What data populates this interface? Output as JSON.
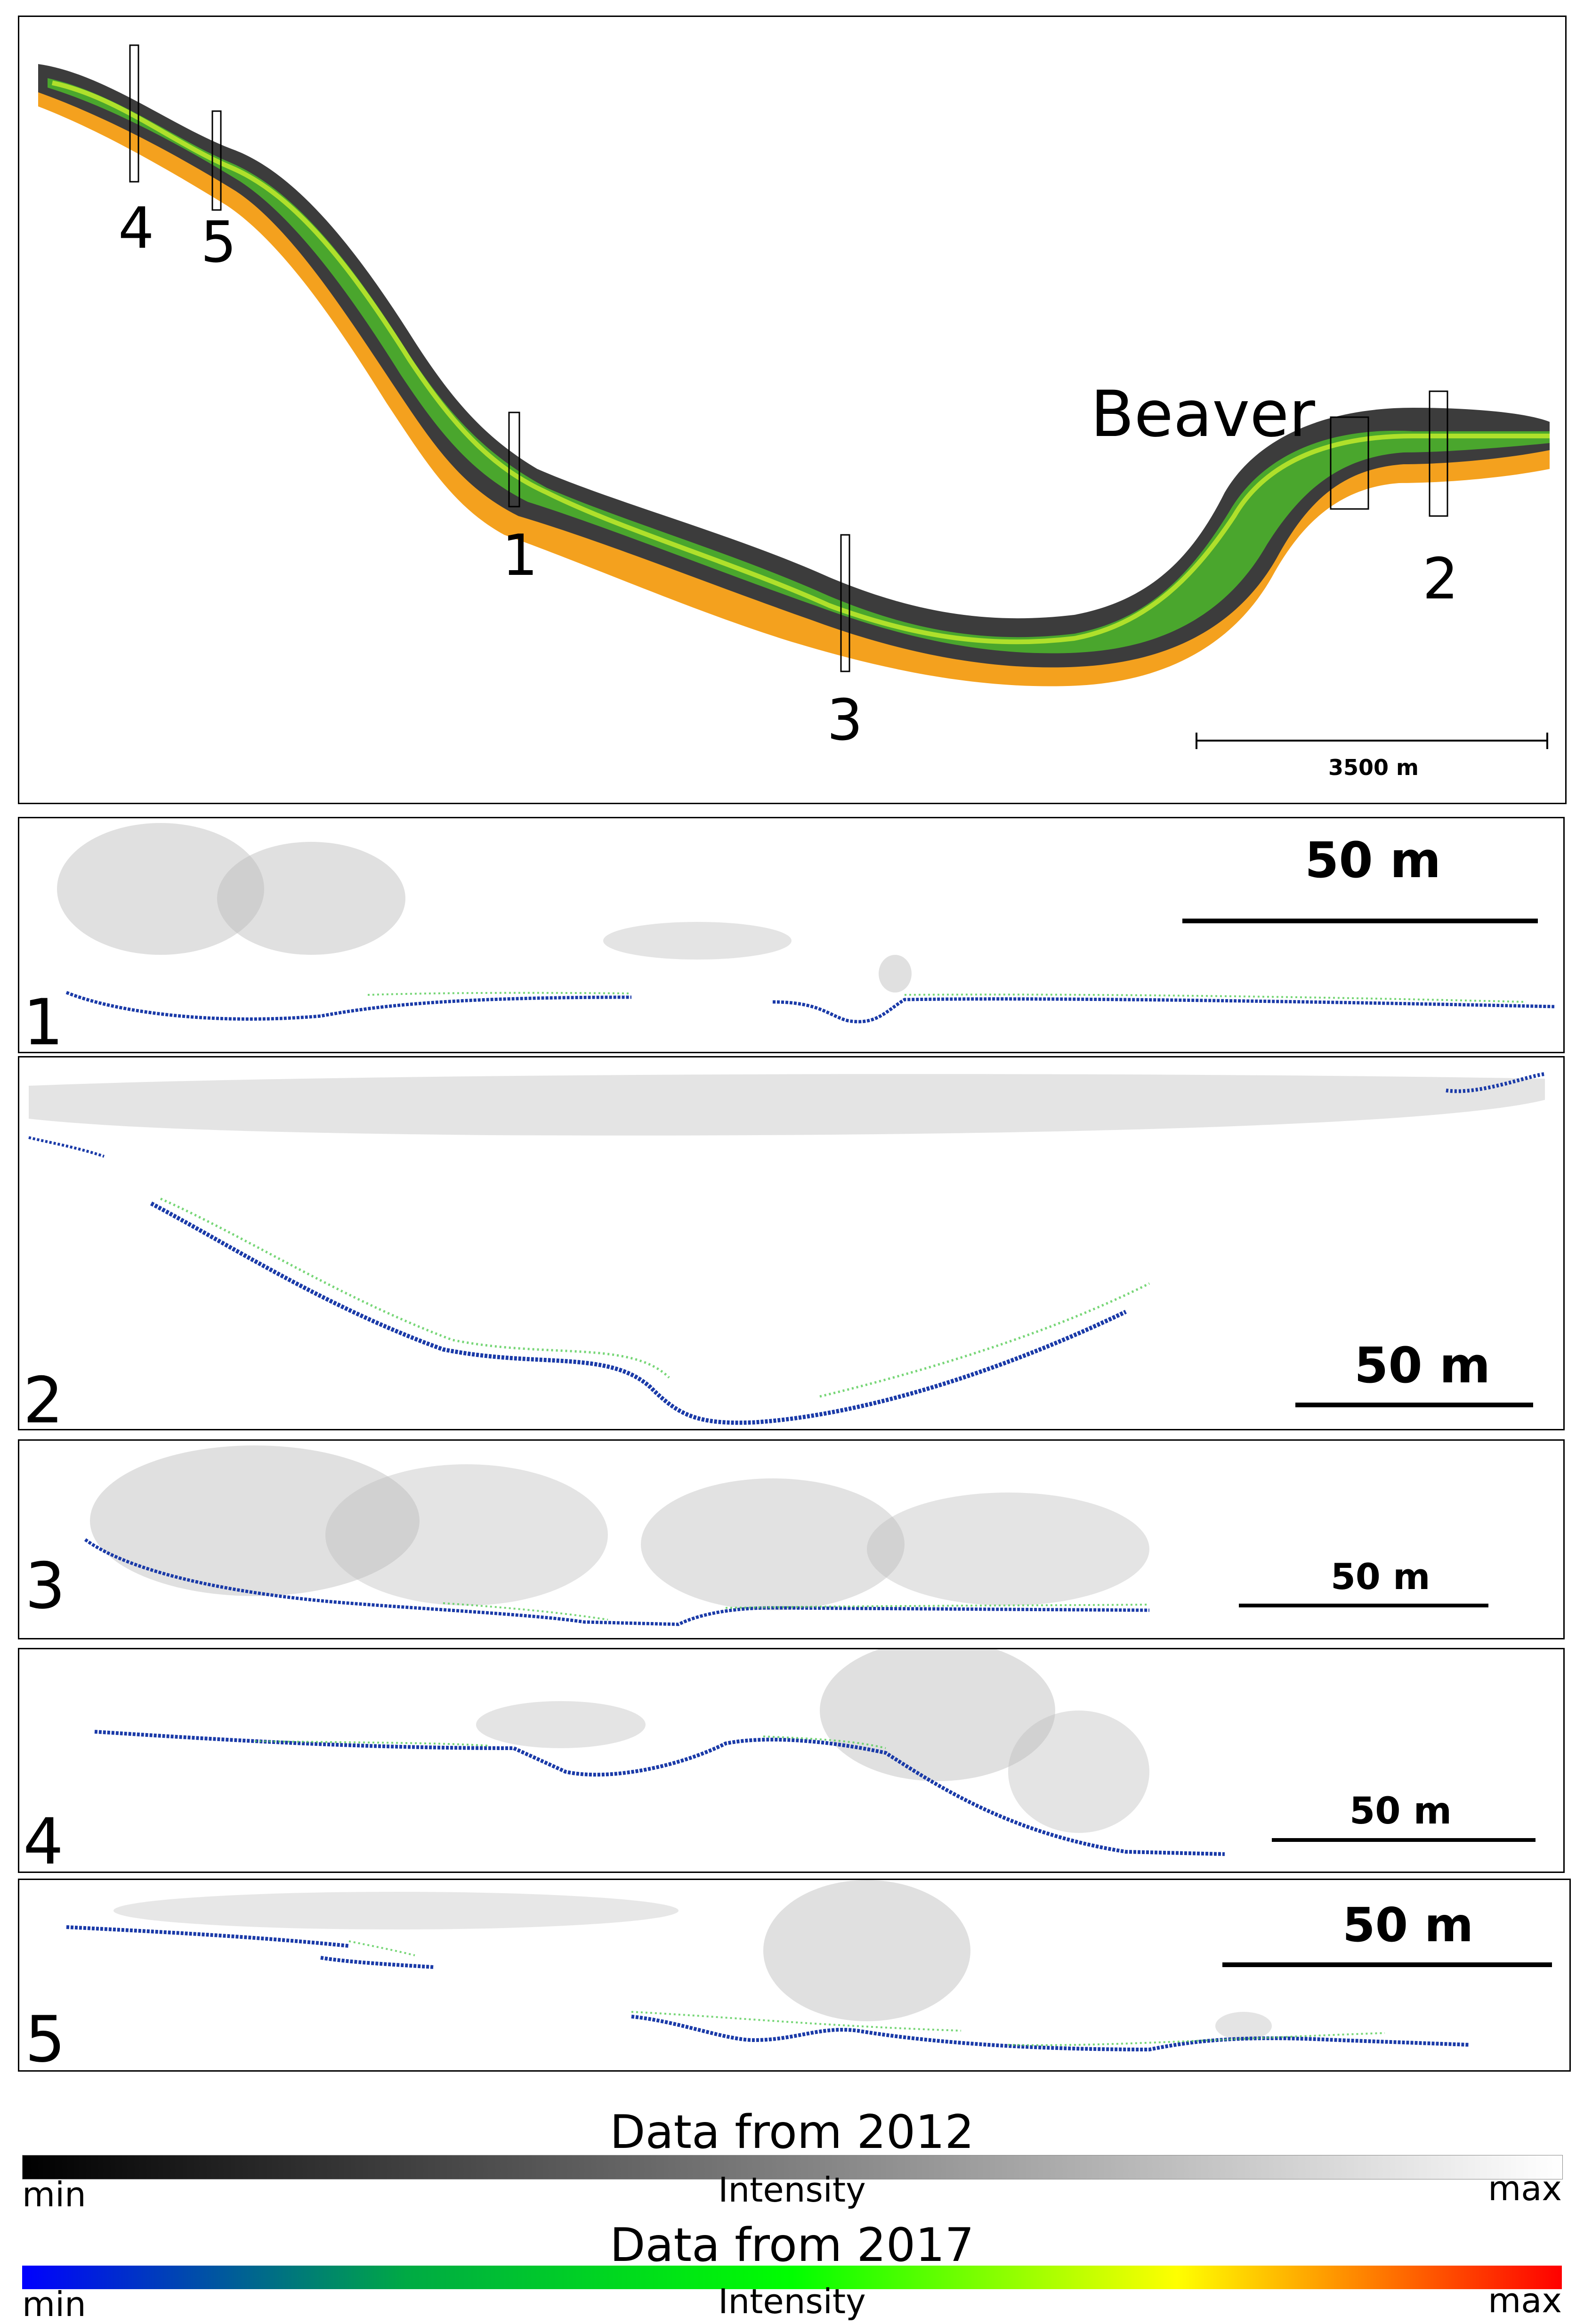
{
  "map": {
    "scale_label": "3500 m",
    "beaver_label": "Beaver",
    "transect_labels": [
      "1",
      "2",
      "3",
      "4",
      "5"
    ]
  },
  "profiles": [
    {
      "number": "1",
      "scale_label": "50 m"
    },
    {
      "number": "2",
      "scale_label": "50 m"
    },
    {
      "number": "3",
      "scale_label": "50 m"
    },
    {
      "number": "4",
      "scale_label": "50 m"
    },
    {
      "number": "5",
      "scale_label": "50 m"
    }
  ],
  "legend": {
    "data_2012": {
      "title": "Data from 2012",
      "min": "min",
      "mid": "Intensity",
      "max": "max",
      "colors": [
        "#000000",
        "#808080",
        "#ffffff"
      ]
    },
    "data_2017": {
      "title": "Data from 2017",
      "min": "min",
      "mid": "Intensity",
      "max": "max",
      "colors": [
        "#0000ff",
        "#00aa44",
        "#00ff00",
        "#ffff00",
        "#ff0000"
      ]
    }
  },
  "colors": {
    "orange_points": "#f39c12",
    "green_points": "#33cc33",
    "yellow_green_points": "#b5e61d",
    "dark_points": "#404040",
    "gray_points": "#999999",
    "blue_points": "#1a3aa8"
  }
}
